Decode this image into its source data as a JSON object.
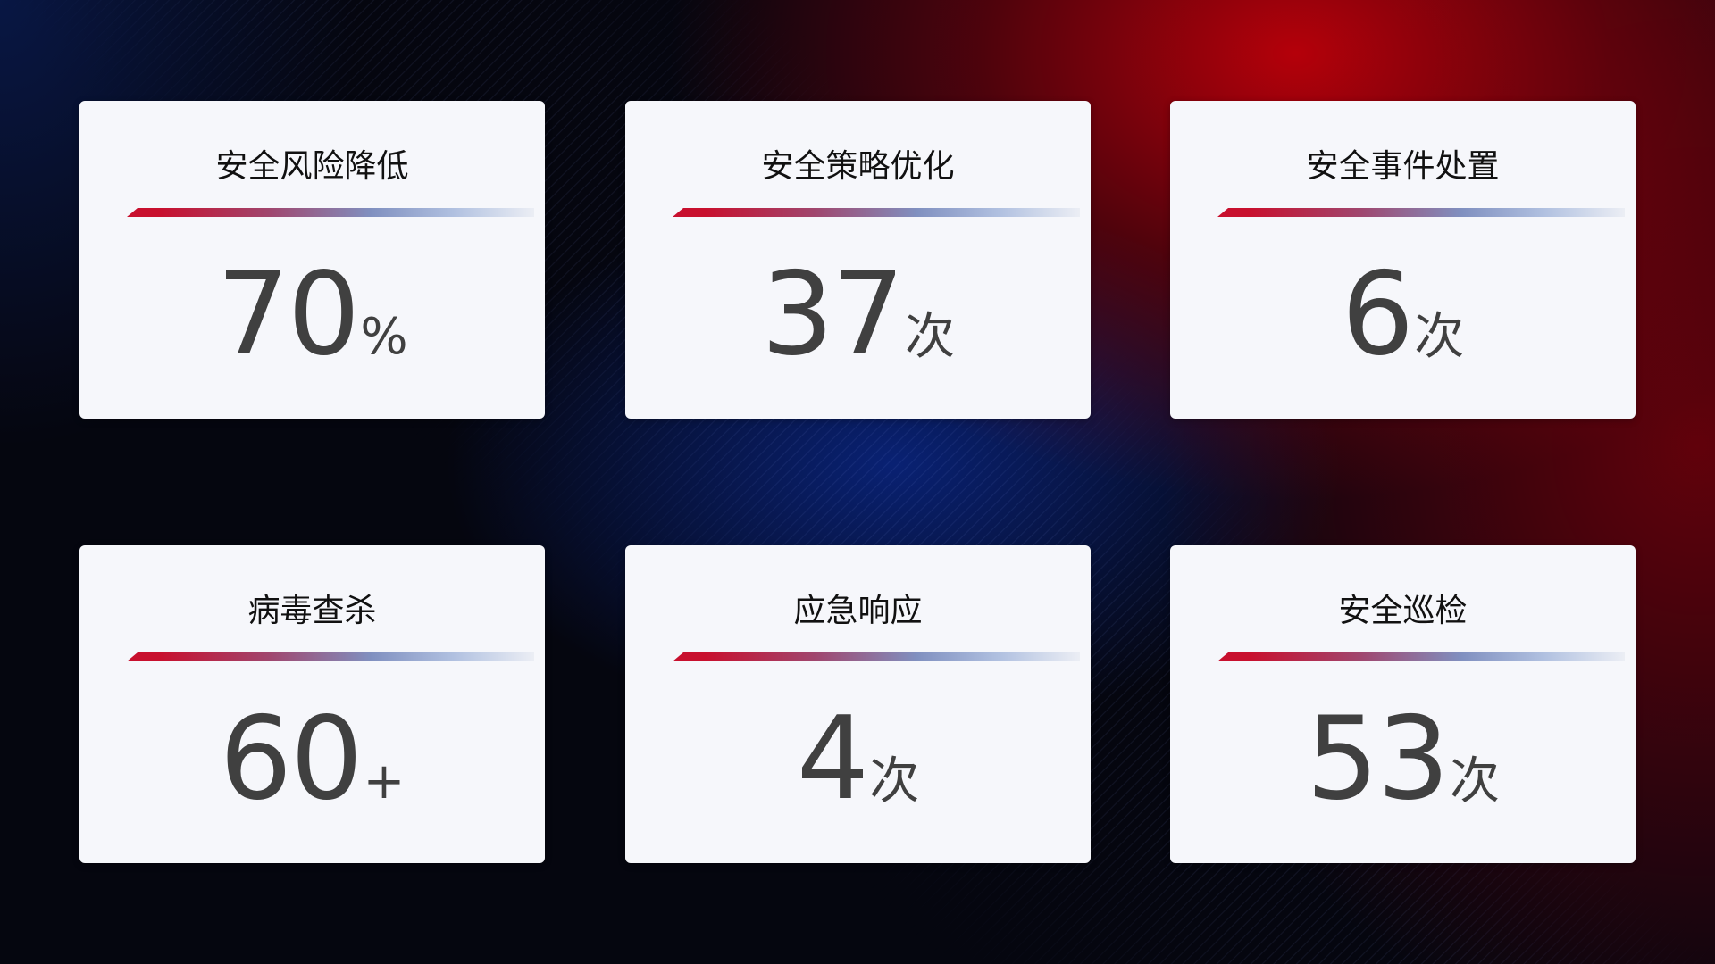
{
  "cards": [
    {
      "title": "安全风险降低",
      "value": "70",
      "unit": "%"
    },
    {
      "title": "安全策略优化",
      "value": "37",
      "unit": "次"
    },
    {
      "title": "安全事件处置",
      "value": "6",
      "unit": "次"
    },
    {
      "title": "病毒查杀",
      "value": "60",
      "unit": "+"
    },
    {
      "title": "应急响应",
      "value": "4",
      "unit": "次"
    },
    {
      "title": "安全巡检",
      "value": "53",
      "unit": "次"
    }
  ],
  "colors": {
    "accent_red": "#c8102e",
    "accent_blue": "#8090c0",
    "card_bg": "#f6f7fb",
    "value_text": "#404040"
  }
}
